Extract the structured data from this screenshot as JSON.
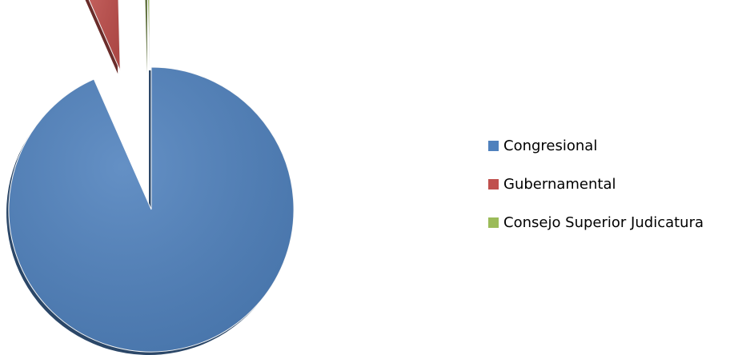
{
  "chart_data": {
    "type": "pie",
    "title": "",
    "categories": [
      "Congresional",
      "Gubernamental",
      "Consejo Superior Judicatura"
    ],
    "values": [
      93.4,
      6.2,
      0.4
    ],
    "unit": "%",
    "exploded": true,
    "legend_position": "right",
    "series": [
      {
        "label": "Congresional",
        "value": 93.4,
        "color": "#4F81BD"
      },
      {
        "label": "Gubernamental",
        "value": 6.2,
        "color": "#C0504D"
      },
      {
        "label": "Consejo Superior Judicatura",
        "value": 0.4,
        "color": "#9BBB59"
      }
    ]
  }
}
